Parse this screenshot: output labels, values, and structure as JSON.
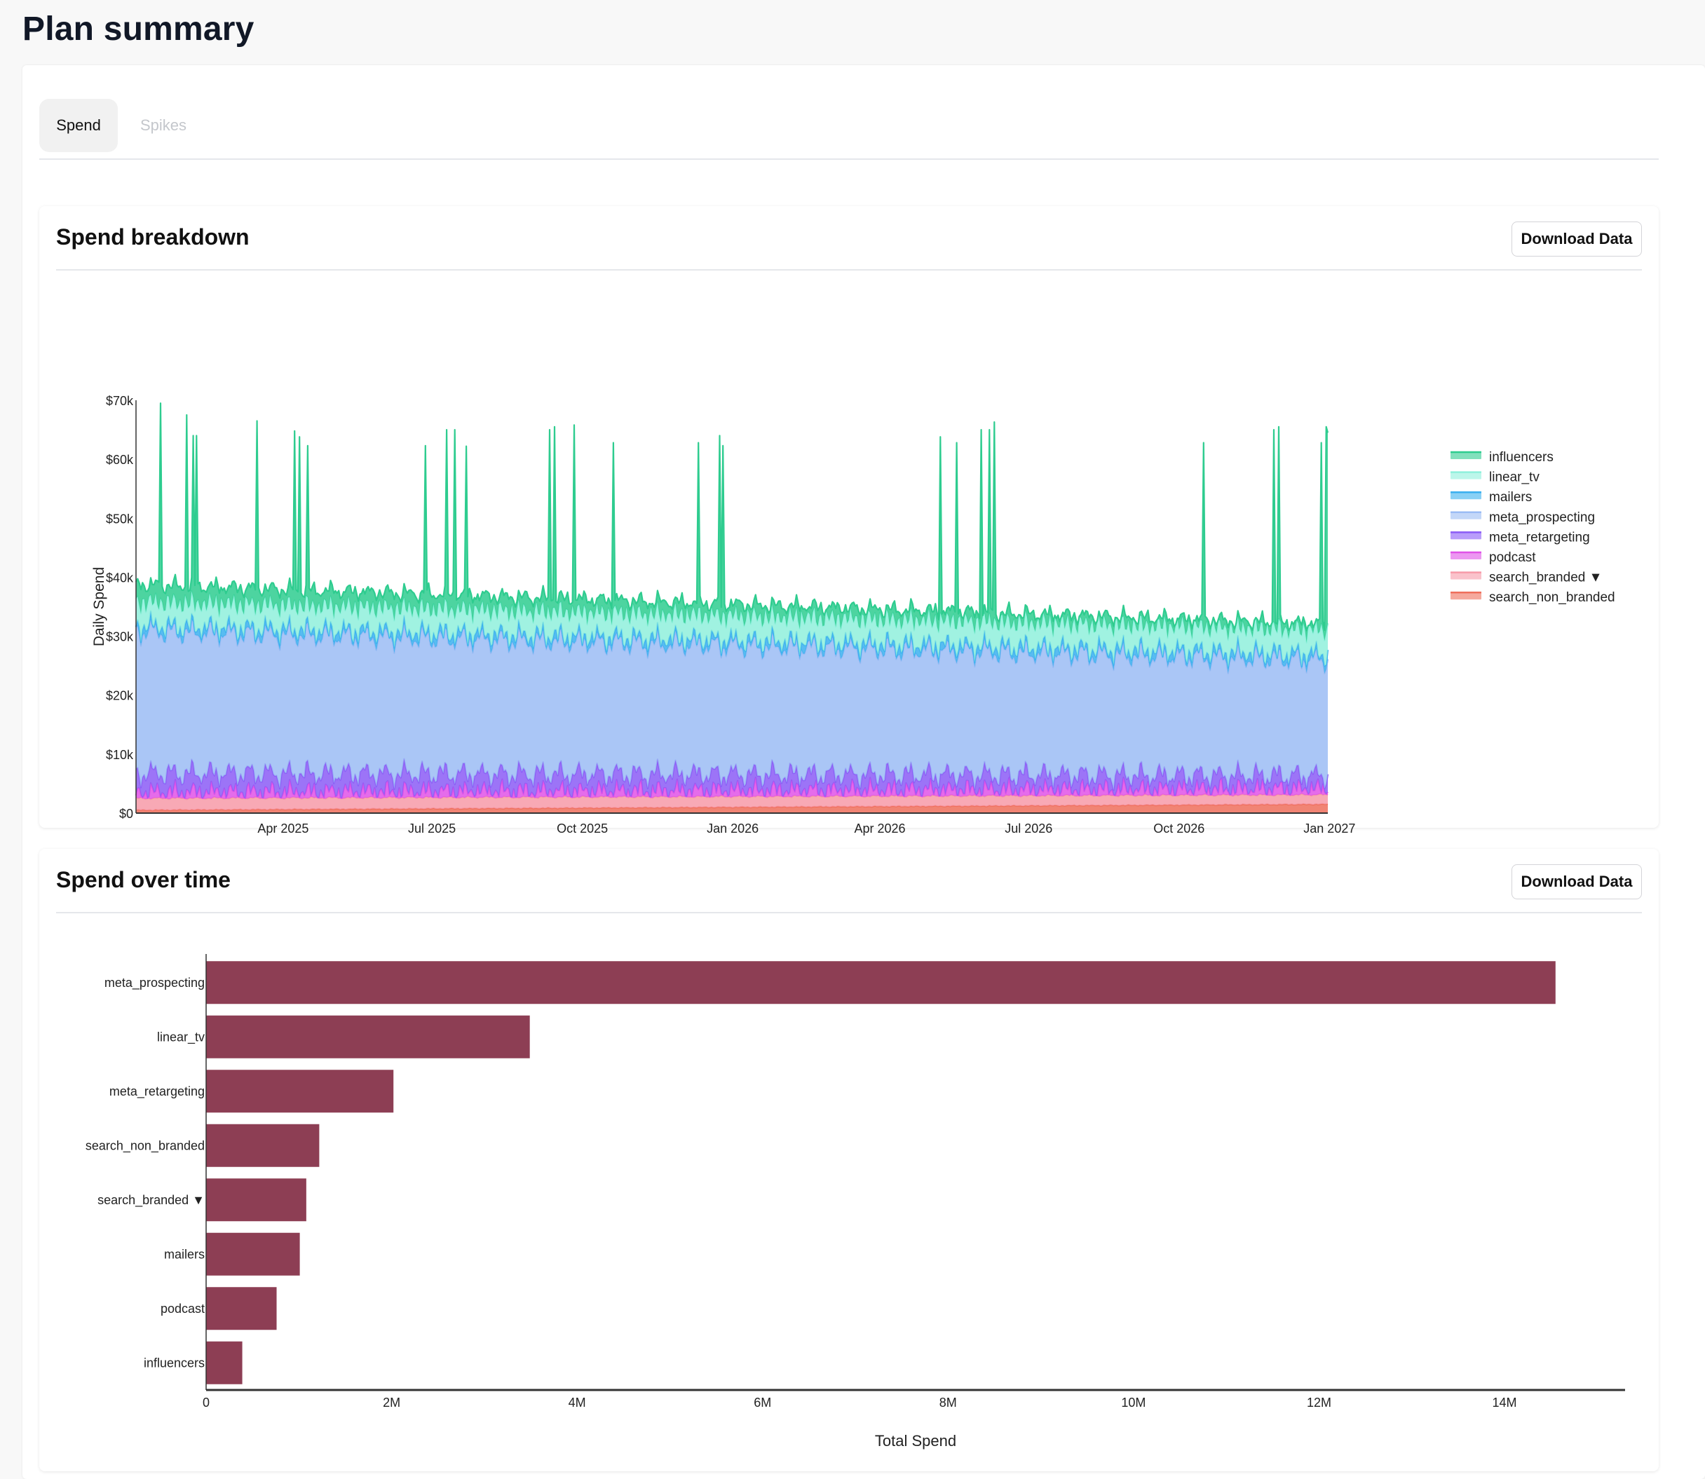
{
  "page": {
    "title": "Plan summary"
  },
  "tabs": [
    {
      "label": "Spend",
      "active": true
    },
    {
      "label": "Spikes",
      "active": false
    }
  ],
  "colors": {
    "influencers": "#2ecc8f",
    "linear_tv": "#8ff0dc",
    "mailers": "#3bb0ef",
    "meta_prospecting": "#9bbcf4",
    "meta_retargeting": "#8b5cf6",
    "podcast": "#e052e8",
    "search_branded": "#f79aa8",
    "search_non_branded": "#ef6f5c",
    "bar": "#8d3e54"
  },
  "breakdown": {
    "title": "Spend breakdown",
    "download_label": "Download Data",
    "chart_data": {
      "type": "area",
      "stacked": true,
      "ylabel": "Daily Spend",
      "ylim": [
        0,
        70000
      ],
      "y_ticks": [
        {
          "value": 0,
          "label": "$0"
        },
        {
          "value": 10000,
          "label": "$10k"
        },
        {
          "value": 20000,
          "label": "$20k"
        },
        {
          "value": 30000,
          "label": "$30k"
        },
        {
          "value": 40000,
          "label": "$40k"
        },
        {
          "value": 50000,
          "label": "$50k"
        },
        {
          "value": 60000,
          "label": "$60k"
        },
        {
          "value": 70000,
          "label": "$70k"
        }
      ],
      "x_range": [
        "2025-01-01",
        "2026-12-31"
      ],
      "x_ticks": [
        {
          "date": "2025-04-01",
          "label": "Apr 2025"
        },
        {
          "date": "2025-07-01",
          "label": "Jul 2025"
        },
        {
          "date": "2025-10-01",
          "label": "Oct 2025"
        },
        {
          "date": "2026-01-01",
          "label": "Jan 2026"
        },
        {
          "date": "2026-04-01",
          "label": "Apr 2026"
        },
        {
          "date": "2026-07-01",
          "label": "Jul 2026"
        },
        {
          "date": "2026-10-01",
          "label": "Oct 2026"
        },
        {
          "date": "2027-01-01",
          "label": "Jan 2027"
        }
      ],
      "legend_position": "right",
      "legend": [
        {
          "key": "influencers",
          "label": "influencers"
        },
        {
          "key": "linear_tv",
          "label": "linear_tv"
        },
        {
          "key": "mailers",
          "label": "mailers"
        },
        {
          "key": "meta_prospecting",
          "label": "meta_prospecting"
        },
        {
          "key": "meta_retargeting",
          "label": "meta_retargeting"
        },
        {
          "key": "podcast",
          "label": "podcast"
        },
        {
          "key": "search_branded",
          "label": "search_branded ▼"
        },
        {
          "key": "search_non_branded",
          "label": "search_non_branded"
        }
      ],
      "series": [
        {
          "key": "search_non_branded",
          "start": 500,
          "end": 1500,
          "amplitude": 100
        },
        {
          "key": "search_branded",
          "start": 2000,
          "end": 1600,
          "amplitude": 200
        },
        {
          "key": "podcast",
          "start": 1000,
          "end": 1000,
          "amplitude": 2200
        },
        {
          "key": "meta_retargeting",
          "start": 3200,
          "end": 2200,
          "amplitude": 2300
        },
        {
          "key": "meta_prospecting",
          "start": 24000,
          "end": 19500,
          "amplitude": 0
        },
        {
          "key": "mailers",
          "start": 1000,
          "end": 1000,
          "amplitude": 900
        },
        {
          "key": "linear_tv",
          "start": 4000,
          "end": 4200,
          "amplitude": 1500
        },
        {
          "key": "influencers",
          "start": 3000,
          "end": 1000,
          "amplitude": 1800
        }
      ],
      "influencer_spikes": [
        {
          "date": "2025-01-16",
          "total": 69500
        },
        {
          "date": "2025-02-01",
          "total": 67500
        },
        {
          "date": "2025-02-05",
          "total": 64000
        },
        {
          "date": "2025-02-07",
          "total": 64000
        },
        {
          "date": "2025-03-16",
          "total": 66500
        },
        {
          "date": "2025-04-08",
          "total": 64800
        },
        {
          "date": "2025-04-11",
          "total": 63800
        },
        {
          "date": "2025-04-16",
          "total": 62300
        },
        {
          "date": "2025-06-27",
          "total": 62300
        },
        {
          "date": "2025-07-10",
          "total": 65000
        },
        {
          "date": "2025-07-15",
          "total": 65000
        },
        {
          "date": "2025-07-22",
          "total": 62200
        },
        {
          "date": "2025-09-11",
          "total": 65000
        },
        {
          "date": "2025-09-14",
          "total": 65500
        },
        {
          "date": "2025-09-26",
          "total": 65800
        },
        {
          "date": "2025-10-20",
          "total": 62800
        },
        {
          "date": "2025-12-11",
          "total": 62800
        },
        {
          "date": "2025-12-24",
          "total": 64000
        },
        {
          "date": "2025-12-26",
          "total": 62300
        },
        {
          "date": "2026-05-08",
          "total": 63800
        },
        {
          "date": "2026-05-18",
          "total": 62800
        },
        {
          "date": "2026-06-02",
          "total": 65000
        },
        {
          "date": "2026-06-07",
          "total": 65000
        },
        {
          "date": "2026-06-10",
          "total": 66300
        },
        {
          "date": "2026-10-16",
          "total": 62800
        },
        {
          "date": "2026-11-28",
          "total": 65000
        },
        {
          "date": "2026-12-01",
          "total": 65500
        },
        {
          "date": "2026-12-27",
          "total": 62800
        },
        {
          "date": "2026-12-30",
          "total": 65500
        },
        {
          "date": "2026-12-31",
          "total": 64500
        }
      ]
    }
  },
  "over_time": {
    "title": "Spend over time",
    "download_label": "Download Data",
    "chart_data": {
      "type": "bar",
      "orientation": "horizontal",
      "xlabel": "Total Spend",
      "xlim": [
        0,
        15300000
      ],
      "x_ticks": [
        {
          "value": 0,
          "label": "0"
        },
        {
          "value": 2000000,
          "label": "2M"
        },
        {
          "value": 4000000,
          "label": "4M"
        },
        {
          "value": 6000000,
          "label": "6M"
        },
        {
          "value": 8000000,
          "label": "8M"
        },
        {
          "value": 10000000,
          "label": "10M"
        },
        {
          "value": 12000000,
          "label": "12M"
        },
        {
          "value": 14000000,
          "label": "14M"
        }
      ],
      "categories": [
        "meta_prospecting",
        "linear_tv",
        "meta_retargeting",
        "search_non_branded",
        "search_branded ▼",
        "mailers",
        "podcast",
        "influencers"
      ],
      "values": [
        14550000,
        3490000,
        2020000,
        1220000,
        1080000,
        1010000,
        760000,
        390000
      ]
    }
  }
}
